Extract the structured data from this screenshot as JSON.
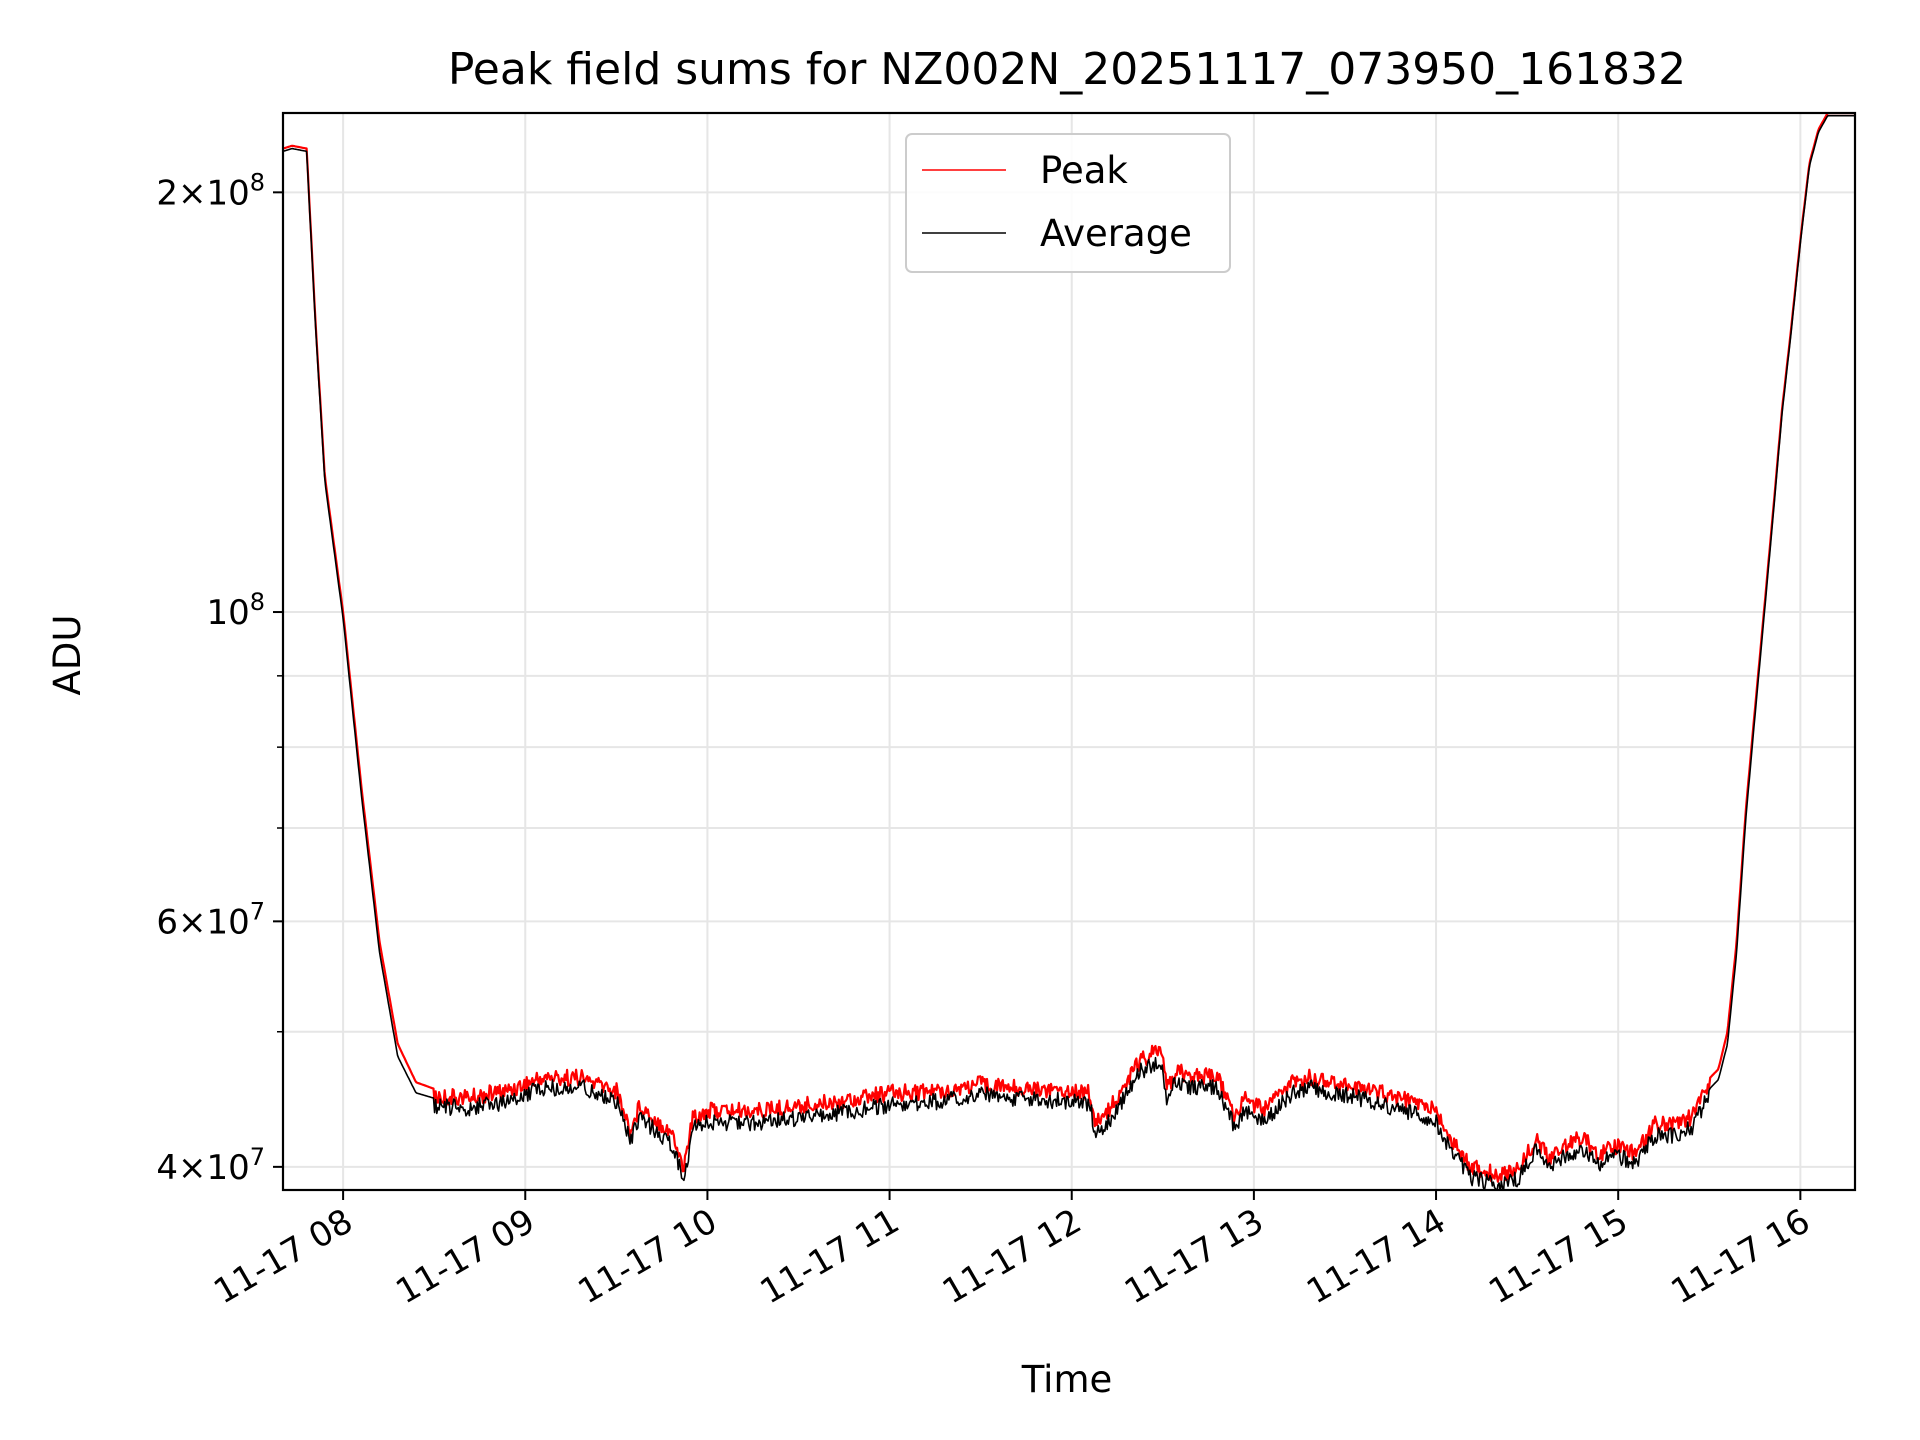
{
  "chart_data": {
    "type": "line",
    "title": "Peak field sums for NZ002N_20251117_073950_161832",
    "xlabel": "Time",
    "ylabel": "ADU",
    "yscale": "log",
    "ylim": [
      38500000,
      228000000
    ],
    "xlim": [
      7.67,
      16.3
    ],
    "x_unit": "hours (2025-11-17)",
    "x_ticks": [
      {
        "value": 8,
        "label": "11-17 08"
      },
      {
        "value": 9,
        "label": "11-17 09"
      },
      {
        "value": 10,
        "label": "11-17 10"
      },
      {
        "value": 11,
        "label": "11-17 11"
      },
      {
        "value": 12,
        "label": "11-17 12"
      },
      {
        "value": 13,
        "label": "11-17 13"
      },
      {
        "value": 14,
        "label": "11-17 14"
      },
      {
        "value": 15,
        "label": "11-17 15"
      },
      {
        "value": 16,
        "label": "11-17 16"
      }
    ],
    "y_ticks": [
      {
        "value": 40000000,
        "mantissa": "4",
        "exponent": "7",
        "label": "4 × 10^7"
      },
      {
        "value": 60000000,
        "mantissa": "6",
        "exponent": "7",
        "label": "6 × 10^7"
      },
      {
        "value": 100000000,
        "mantissa": "",
        "exponent": "8",
        "label": "10^8"
      },
      {
        "value": 200000000,
        "mantissa": "2",
        "exponent": "8",
        "label": "2 × 10^8"
      }
    ],
    "y_minor_ticks": [
      50000000,
      70000000,
      80000000,
      90000000
    ],
    "grid": true,
    "legend_position": "upper-center",
    "series": [
      {
        "name": "Peak",
        "color": "#ff0000",
        "x": [
          7.67,
          7.72,
          7.8,
          7.85,
          7.9,
          8.0,
          8.1,
          8.2,
          8.3,
          8.4,
          8.5,
          8.7,
          8.9,
          9.1,
          9.3,
          9.5,
          9.58,
          9.63,
          9.7,
          9.8,
          9.87,
          9.92,
          10.0,
          10.3,
          10.6,
          11.0,
          11.3,
          11.5,
          11.7,
          12.0,
          12.1,
          12.13,
          12.2,
          12.3,
          12.35,
          12.45,
          12.5,
          12.52,
          12.57,
          12.65,
          12.8,
          12.9,
          12.95,
          13.05,
          13.2,
          13.3,
          13.5,
          13.7,
          13.9,
          14.0,
          14.1,
          14.2,
          14.35,
          14.45,
          14.55,
          14.62,
          14.7,
          14.8,
          14.9,
          15.0,
          15.1,
          15.2,
          15.3,
          15.4,
          15.48,
          15.55,
          15.6,
          15.65,
          15.7,
          15.75,
          15.8,
          15.85,
          15.9,
          15.95,
          16.0,
          16.05,
          16.1,
          16.15,
          16.3
        ],
        "y": [
          215000000,
          216000000,
          215000000,
          160000000,
          125000000,
          100000000,
          75000000,
          58000000,
          49000000,
          46000000,
          45500000,
          45500000,
          46000000,
          47000000,
          47000000,
          46000000,
          43000000,
          45000000,
          44000000,
          43000000,
          40500000,
          44000000,
          44500000,
          44500000,
          45000000,
          45800000,
          46000000,
          46500000,
          46200000,
          46000000,
          45800000,
          43500000,
          44500000,
          46500000,
          48000000,
          49000000,
          48800000,
          46000000,
          47500000,
          47200000,
          47000000,
          44000000,
          45500000,
          44500000,
          46500000,
          47000000,
          46500000,
          45800000,
          45000000,
          44500000,
          42000000,
          40500000,
          40000000,
          40500000,
          42500000,
          41000000,
          42000000,
          42500000,
          41500000,
          42000000,
          41500000,
          43500000,
          43500000,
          44000000,
          46000000,
          47000000,
          50000000,
          58000000,
          72000000,
          85000000,
          100000000,
          118000000,
          140000000,
          160000000,
          185000000,
          210000000,
          222000000,
          228000000,
          228000000
        ]
      },
      {
        "name": "Average",
        "color": "#000000",
        "x": [
          7.67,
          7.72,
          7.8,
          7.85,
          7.9,
          8.0,
          8.1,
          8.2,
          8.3,
          8.4,
          8.5,
          8.7,
          8.9,
          9.1,
          9.3,
          9.5,
          9.58,
          9.63,
          9.7,
          9.8,
          9.87,
          9.92,
          10.0,
          10.3,
          10.6,
          11.0,
          11.3,
          11.5,
          11.7,
          12.0,
          12.1,
          12.13,
          12.2,
          12.3,
          12.35,
          12.45,
          12.5,
          12.52,
          12.57,
          12.65,
          12.8,
          12.9,
          12.95,
          13.05,
          13.2,
          13.3,
          13.5,
          13.7,
          13.9,
          14.0,
          14.1,
          14.2,
          14.35,
          14.45,
          14.55,
          14.62,
          14.7,
          14.8,
          14.9,
          15.0,
          15.1,
          15.2,
          15.3,
          15.4,
          15.48,
          15.55,
          15.6,
          15.65,
          15.7,
          15.75,
          15.8,
          15.85,
          15.9,
          15.95,
          16.0,
          16.05,
          16.1,
          16.15,
          16.3
        ],
        "y": [
          214000000,
          215000000,
          214000000,
          159000000,
          124000000,
          99000000,
          74000000,
          57000000,
          48000000,
          45200000,
          44800000,
          44700000,
          45200000,
          46200000,
          46300000,
          45200000,
          42300000,
          44200000,
          43200000,
          42200000,
          39800000,
          43200000,
          43600000,
          43600000,
          44100000,
          44900000,
          45200000,
          45700000,
          45400000,
          45200000,
          45000000,
          42800000,
          43700000,
          45700000,
          47200000,
          48100000,
          47900000,
          45200000,
          46600000,
          46300000,
          46200000,
          43200000,
          44600000,
          43700000,
          45700000,
          46200000,
          45700000,
          45000000,
          44200000,
          43700000,
          41300000,
          39800000,
          39300000,
          39800000,
          41700000,
          40300000,
          41300000,
          41700000,
          40800000,
          41300000,
          40800000,
          42700000,
          42700000,
          43200000,
          45200000,
          46200000,
          49000000,
          57000000,
          71000000,
          84000000,
          99000000,
          117000000,
          139000000,
          159000000,
          184000000,
          209000000,
          221000000,
          227000000,
          227000000
        ]
      }
    ]
  }
}
